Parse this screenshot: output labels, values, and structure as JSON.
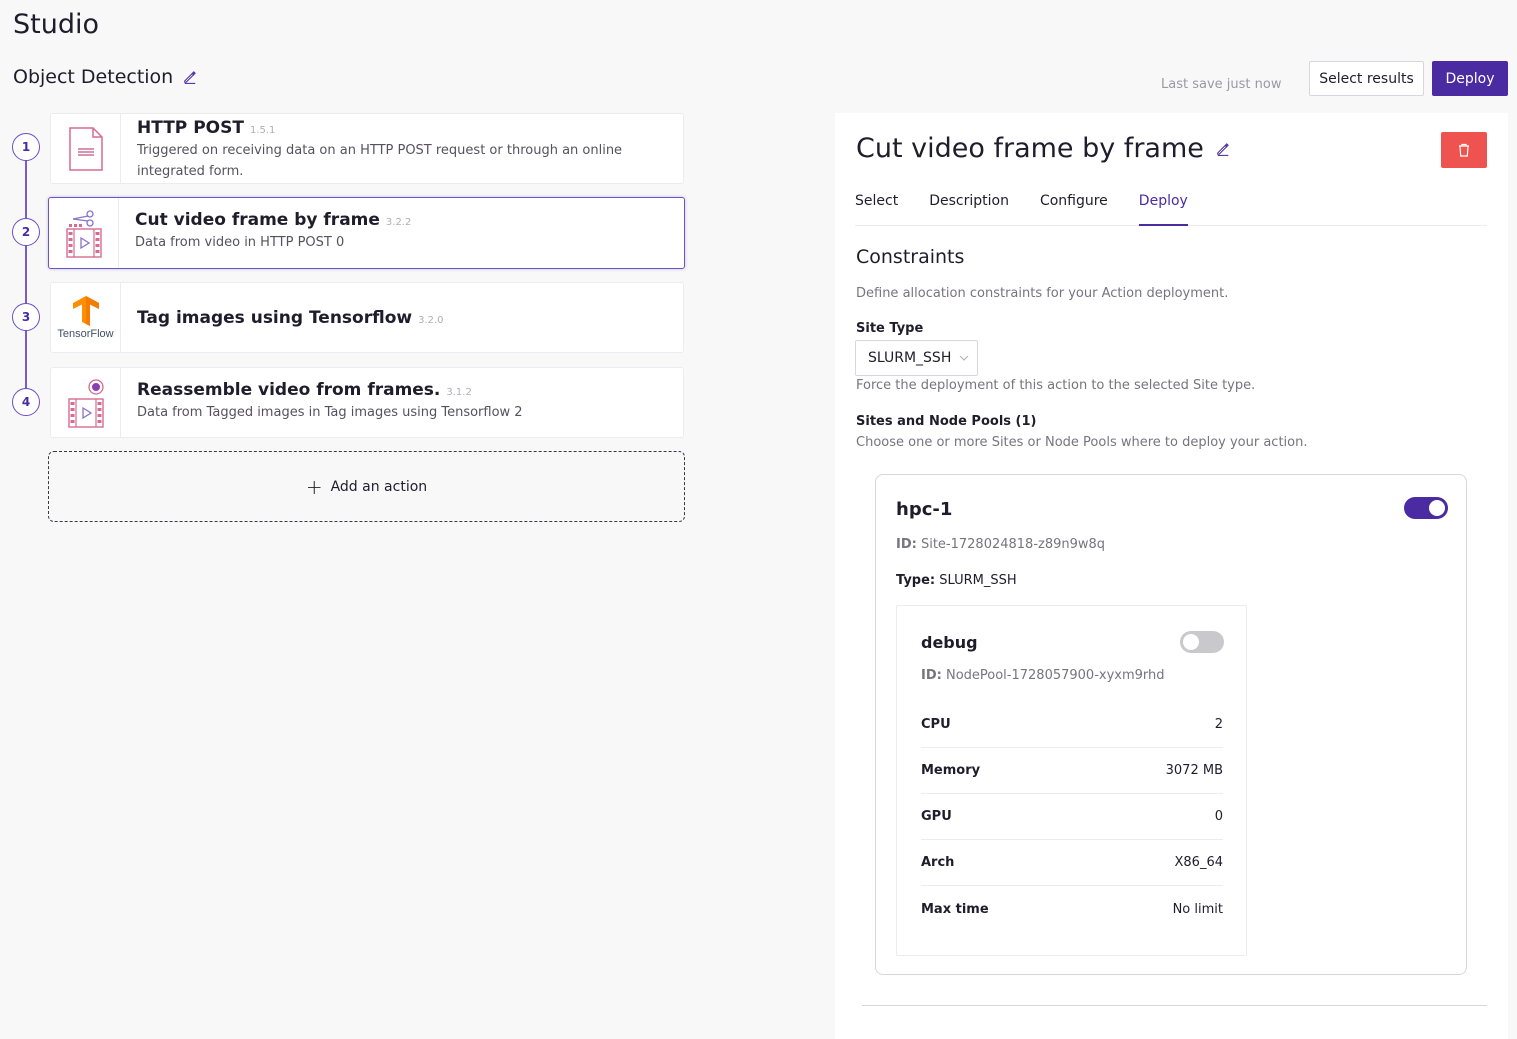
{
  "app": {
    "title": "Studio"
  },
  "workflow": {
    "name": "Object Detection",
    "save_status": "Last save just now"
  },
  "toolbar": {
    "select_results": "Select results",
    "deploy": "Deploy"
  },
  "steps": [
    {
      "number": "1",
      "title": "HTTP POST",
      "version": "1.5.1",
      "description": "Triggered on receiving data on an HTTP POST request or through an online integrated form.",
      "icon": "form-document-icon"
    },
    {
      "number": "2",
      "title": "Cut video frame by frame",
      "version": "3.2.2",
      "description": "Data from video in HTTP POST 0",
      "icon": "video-cut-icon"
    },
    {
      "number": "3",
      "title": "Tag images using Tensorflow",
      "version": "3.2.0",
      "description": "",
      "icon": "tensorflow-logo",
      "logo_text": "TensorFlow"
    },
    {
      "number": "4",
      "title": "Reassemble video from frames.",
      "version": "3.1.2",
      "description": "Data from Tagged images in Tag images using Tensorflow 2",
      "icon": "video-reassemble-icon"
    }
  ],
  "add_action": {
    "label": "Add an action"
  },
  "panel": {
    "title": "Cut video frame by frame",
    "tabs": [
      {
        "label": "Select",
        "active": false
      },
      {
        "label": "Description",
        "active": false
      },
      {
        "label": "Configure",
        "active": false
      },
      {
        "label": "Deploy",
        "active": true
      }
    ],
    "constraints": {
      "title": "Constraints",
      "description": "Define allocation constraints for your Action deployment.",
      "site_type_label": "Site Type",
      "site_type_value": "SLURM_SSH",
      "site_type_help": "Force the deployment of this action to the selected Site type.",
      "sites_label": "Sites and Node Pools (1)",
      "sites_help": "Choose one or more Sites or Node Pools where to deploy your action."
    },
    "site": {
      "name": "hpc-1",
      "enabled": true,
      "id_label": "ID:",
      "id_value": "Site-1728024818-z89n9w8q",
      "type_label": "Type:",
      "type_value": "SLURM_SSH",
      "node_pool": {
        "name": "debug",
        "enabled": false,
        "id_label": "ID:",
        "id_value": "NodePool-1728057900-xyxm9rhd",
        "specs": [
          {
            "key": "CPU",
            "value": "2"
          },
          {
            "key": "Memory",
            "value": "3072 MB"
          },
          {
            "key": "GPU",
            "value": "0"
          },
          {
            "key": "Arch",
            "value": "X86_64"
          },
          {
            "key": "Max time",
            "value": "No limit"
          }
        ]
      }
    }
  },
  "colors": {
    "accent": "#4a2ba1",
    "danger": "#ef5350",
    "tensorflow": "#ff8f00"
  }
}
